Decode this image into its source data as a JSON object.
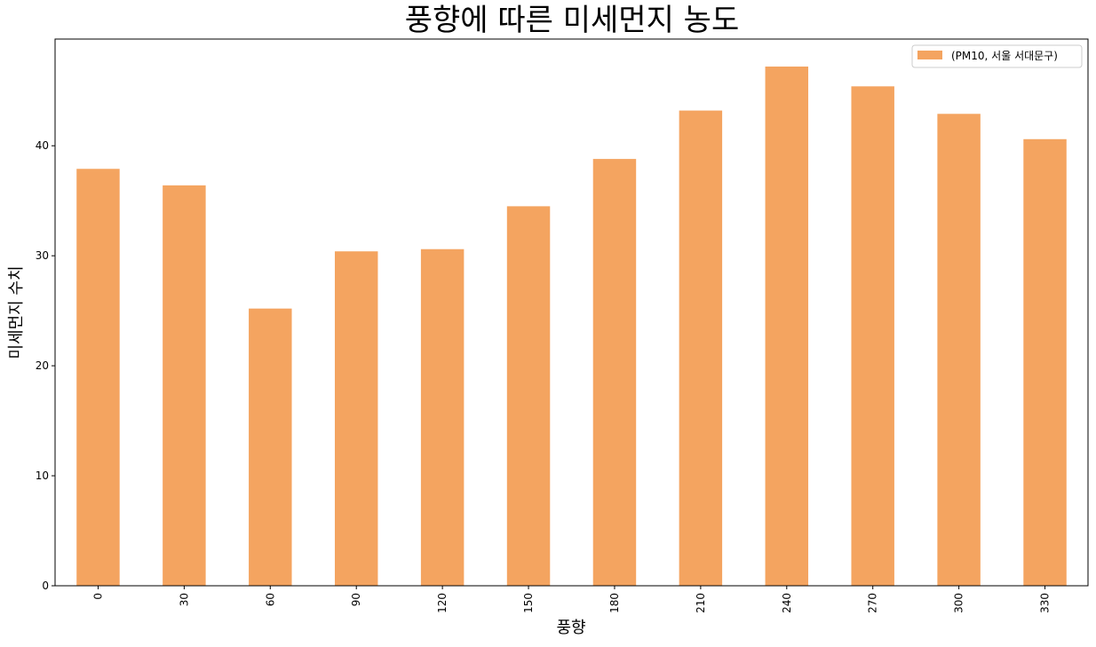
{
  "chart_data": {
    "type": "bar",
    "title": "풍향에 따른 미세먼지 농도",
    "xlabel": "풍향",
    "ylabel": "미세먼지 수치",
    "categories": [
      "0",
      "30",
      "60",
      "90",
      "120",
      "150",
      "180",
      "210",
      "240",
      "270",
      "300",
      "330"
    ],
    "series": [
      {
        "name": "(PM10, 서울 서대문구)",
        "values": [
          37.9,
          36.4,
          25.2,
          30.4,
          30.6,
          34.5,
          38.8,
          43.2,
          47.2,
          45.4,
          42.9,
          40.6
        ]
      }
    ],
    "ylim": [
      0,
      49.7
    ],
    "yticks": [
      "0",
      "10",
      "20",
      "30",
      "40"
    ],
    "grid": false,
    "legend_position": "top-right",
    "bar_color": "#f4a460"
  }
}
